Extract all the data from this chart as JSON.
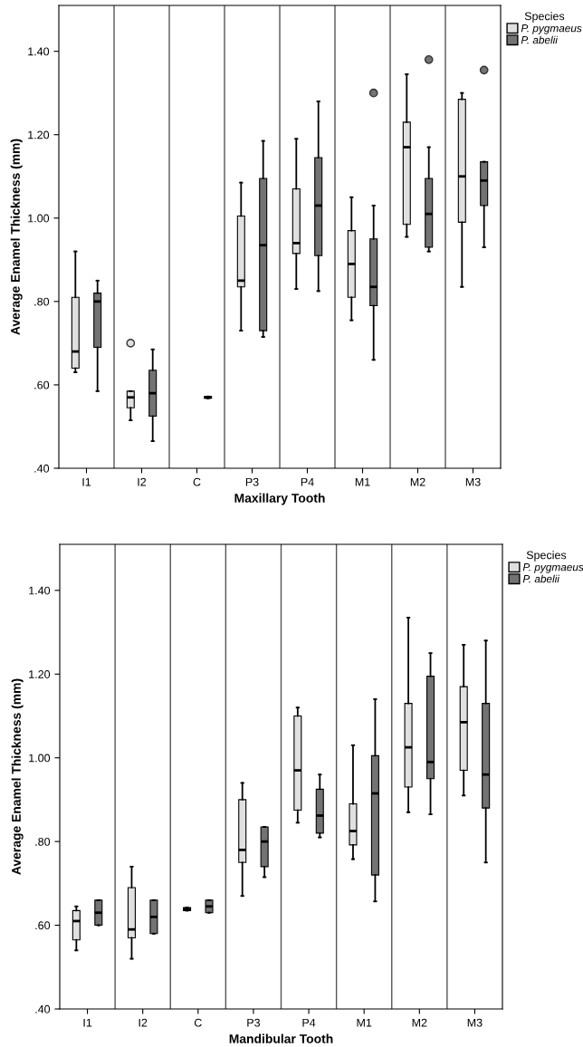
{
  "chart_data": [
    {
      "type": "box",
      "xlabel": "Maxillary Tooth",
      "ylabel": "Average Enamel Thickness (mm)",
      "legend_title": "Species",
      "legend": "top right",
      "grid": "x",
      "marker": "circle",
      "categories": [
        "I1",
        "I2",
        "C",
        "P3",
        "P4",
        "M1",
        "M2",
        "M3"
      ],
      "ylim": [
        0.4,
        1.51
      ],
      "yticks": [
        {
          "value": 0.4,
          "label": ".40"
        },
        {
          "value": 0.6,
          "label": ".60"
        },
        {
          "value": 0.8,
          "label": ".80"
        },
        {
          "value": 1.0,
          "label": "1.00"
        },
        {
          "value": 1.2,
          "label": "1.20"
        },
        {
          "value": 1.4,
          "label": "1.40"
        }
      ],
      "series": [
        {
          "name": "P. pygmaeus",
          "color": "#e0e0e0",
          "boxes": [
            {
              "low": 0.63,
              "q1": 0.64,
              "median": 0.68,
              "q3": 0.81,
              "high": 0.92
            },
            {
              "low": 0.515,
              "q1": 0.545,
              "median": 0.57,
              "q3": 0.585,
              "high": 0.585,
              "outliers": [
                0.7
              ]
            },
            null,
            {
              "low": 0.73,
              "q1": 0.835,
              "median": 0.85,
              "q3": 1.005,
              "high": 1.085
            },
            {
              "low": 0.83,
              "q1": 0.915,
              "median": 0.94,
              "q3": 1.07,
              "high": 1.19
            },
            {
              "low": 0.755,
              "q1": 0.81,
              "median": 0.89,
              "q3": 0.97,
              "high": 1.05
            },
            {
              "low": 0.955,
              "q1": 0.985,
              "median": 1.17,
              "q3": 1.23,
              "high": 1.345
            },
            {
              "low": 0.835,
              "q1": 0.99,
              "median": 1.1,
              "q3": 1.285,
              "high": 1.3
            }
          ]
        },
        {
          "name": "P. abelii",
          "color": "#737373",
          "boxes": [
            {
              "low": 0.585,
              "q1": 0.69,
              "median": 0.8,
              "q3": 0.82,
              "high": 0.85
            },
            {
              "low": 0.465,
              "q1": 0.525,
              "median": 0.58,
              "q3": 0.635,
              "high": 0.685
            },
            {
              "low": 0.568,
              "q1": 0.568,
              "median": 0.57,
              "q3": 0.572,
              "high": 0.572
            },
            {
              "low": 0.715,
              "q1": 0.73,
              "median": 0.935,
              "q3": 1.095,
              "high": 1.185
            },
            {
              "low": 0.825,
              "q1": 0.91,
              "median": 1.03,
              "q3": 1.145,
              "high": 1.28
            },
            {
              "low": 0.66,
              "q1": 0.79,
              "median": 0.835,
              "q3": 0.95,
              "high": 1.03,
              "outliers": [
                1.3
              ]
            },
            {
              "low": 0.92,
              "q1": 0.93,
              "median": 1.01,
              "q3": 1.095,
              "high": 1.17,
              "outliers": [
                1.38
              ]
            },
            {
              "low": 0.93,
              "q1": 1.03,
              "median": 1.09,
              "q3": 1.135,
              "high": 1.135,
              "outliers": [
                1.355
              ]
            }
          ]
        }
      ]
    },
    {
      "type": "box",
      "xlabel": "Mandibular Tooth",
      "ylabel": "Average Enamel Thickness (mm)",
      "legend_title": "Species",
      "legend": "top right",
      "grid": "x",
      "marker": "circle",
      "categories": [
        "I1",
        "I2",
        "C",
        "P3",
        "P4",
        "M1",
        "M2",
        "M3"
      ],
      "ylim": [
        0.4,
        1.51
      ],
      "yticks": [
        {
          "value": 0.4,
          "label": ".40"
        },
        {
          "value": 0.6,
          "label": ".60"
        },
        {
          "value": 0.8,
          "label": ".80"
        },
        {
          "value": 1.0,
          "label": "1.00"
        },
        {
          "value": 1.2,
          "label": "1.20"
        },
        {
          "value": 1.4,
          "label": "1.40"
        }
      ],
      "series": [
        {
          "name": "P. pygmaeus",
          "color": "#e0e0e0",
          "boxes": [
            {
              "low": 0.54,
              "q1": 0.565,
              "median": 0.61,
              "q3": 0.635,
              "high": 0.645
            },
            {
              "low": 0.52,
              "q1": 0.57,
              "median": 0.59,
              "q3": 0.69,
              "high": 0.74
            },
            {
              "low": 0.635,
              "q1": 0.635,
              "median": 0.638,
              "q3": 0.642,
              "high": 0.642
            },
            {
              "low": 0.67,
              "q1": 0.75,
              "median": 0.78,
              "q3": 0.9,
              "high": 0.94
            },
            {
              "low": 0.845,
              "q1": 0.875,
              "median": 0.97,
              "q3": 1.1,
              "high": 1.12
            },
            {
              "low": 0.758,
              "q1": 0.792,
              "median": 0.825,
              "q3": 0.89,
              "high": 1.03
            },
            {
              "low": 0.87,
              "q1": 0.93,
              "median": 1.025,
              "q3": 1.13,
              "high": 1.335
            },
            {
              "low": 0.91,
              "q1": 0.97,
              "median": 1.085,
              "q3": 1.17,
              "high": 1.27
            }
          ]
        },
        {
          "name": "P. abelii",
          "color": "#737373",
          "boxes": [
            {
              "low": 0.6,
              "q1": 0.6,
              "median": 0.63,
              "q3": 0.66,
              "high": 0.66
            },
            {
              "low": 0.58,
              "q1": 0.58,
              "median": 0.62,
              "q3": 0.66,
              "high": 0.66
            },
            {
              "low": 0.63,
              "q1": 0.63,
              "median": 0.645,
              "q3": 0.66,
              "high": 0.66
            },
            {
              "low": 0.715,
              "q1": 0.74,
              "median": 0.8,
              "q3": 0.835,
              "high": 0.835
            },
            {
              "low": 0.81,
              "q1": 0.82,
              "median": 0.862,
              "q3": 0.925,
              "high": 0.96
            },
            {
              "low": 0.657,
              "q1": 0.72,
              "median": 0.915,
              "q3": 1.005,
              "high": 1.14
            },
            {
              "low": 0.865,
              "q1": 0.95,
              "median": 0.99,
              "q3": 1.195,
              "high": 1.25
            },
            {
              "low": 0.75,
              "q1": 0.88,
              "median": 0.96,
              "q3": 1.13,
              "high": 1.28
            }
          ]
        }
      ]
    }
  ]
}
